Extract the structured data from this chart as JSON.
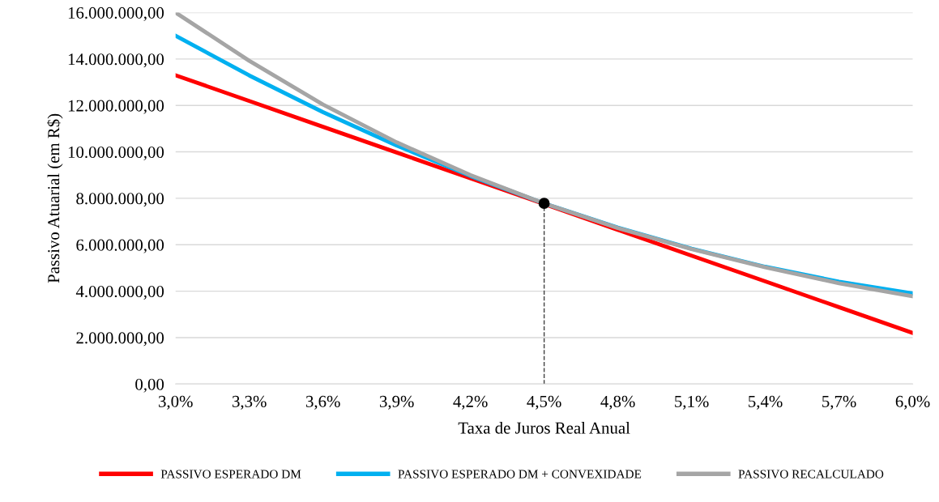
{
  "chart_data": {
    "type": "line",
    "xlabel": "Taxa de Juros Real Anual",
    "ylabel": "Passivo Atuarial (em R$)",
    "x": [
      3.0,
      3.3,
      3.6,
      3.9,
      4.2,
      4.5,
      4.8,
      5.1,
      5.4,
      5.7,
      6.0
    ],
    "series": [
      {
        "name": "PASSIVO ESPERADO DM",
        "color": "#ff0000",
        "values": [
          13300000,
          12190000,
          11080000,
          9970000,
          8860000,
          7750000,
          6640000,
          5530000,
          4420000,
          3310000,
          2200000
        ]
      },
      {
        "name": "PASSIVO ESPERADO DM + CONVEXIDADE",
        "color": "#00b0f0",
        "values": [
          15000000,
          13290000,
          11710000,
          10270000,
          8960000,
          7780000,
          6740000,
          5830000,
          5050000,
          4410000,
          3900000
        ]
      },
      {
        "name": "PASSIVO RECALCULADO",
        "color": "#a5a5a5",
        "values": [
          16000000,
          13920000,
          12040000,
          10410000,
          9000000,
          7780000,
          6720000,
          5810000,
          5030000,
          4340000,
          3780000
        ]
      },
      {
        "type": "scatter",
        "marker": "circle",
        "color": "#000000",
        "x": [
          4.5
        ],
        "values": [
          7780000
        ]
      }
    ],
    "ref_lines": [
      {
        "axis": "x",
        "value": 4.5,
        "color": "#404040",
        "line_style": "dashed"
      }
    ],
    "xlim": [
      3.0,
      6.0
    ],
    "xticks": [
      {
        "value": 3.0,
        "label": "3,0%"
      },
      {
        "value": 3.3,
        "label": "3,3%"
      },
      {
        "value": 3.6,
        "label": "3,6%"
      },
      {
        "value": 3.9,
        "label": "3,9%"
      },
      {
        "value": 4.2,
        "label": "4,2%"
      },
      {
        "value": 4.5,
        "label": "4,5%"
      },
      {
        "value": 4.8,
        "label": "4,8%"
      },
      {
        "value": 5.1,
        "label": "5,1%"
      },
      {
        "value": 5.4,
        "label": "5,4%"
      },
      {
        "value": 5.7,
        "label": "5,7%"
      },
      {
        "value": 6.0,
        "label": "6,0%"
      }
    ],
    "ylim": [
      0,
      16000000
    ],
    "yticks": [
      {
        "value": 0,
        "label": "0,00"
      },
      {
        "value": 2000000,
        "label": "2.000.000,00"
      },
      {
        "value": 4000000,
        "label": "4.000.000,00"
      },
      {
        "value": 6000000,
        "label": "6.000.000,00"
      },
      {
        "value": 8000000,
        "label": "8.000.000,00"
      },
      {
        "value": 10000000,
        "label": "10.000.000,00"
      },
      {
        "value": 12000000,
        "label": "12.000.000,00"
      },
      {
        "value": 14000000,
        "label": "14.000.000,00"
      },
      {
        "value": 16000000,
        "label": "16.000.000,00"
      }
    ],
    "grid": "y",
    "legend": "bottom",
    "line_style": "solid"
  }
}
